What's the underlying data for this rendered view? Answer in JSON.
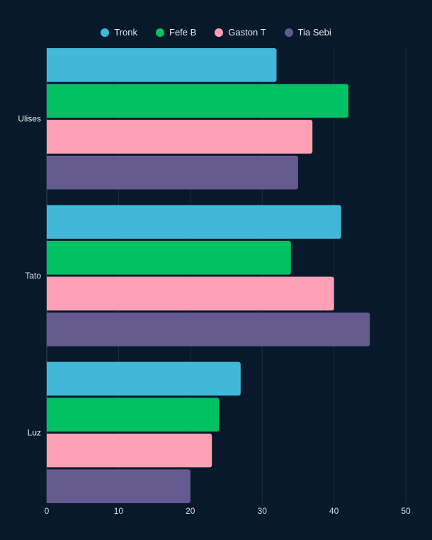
{
  "chart_data": {
    "type": "bar",
    "orientation": "horizontal",
    "title": "",
    "xlabel": "",
    "ylabel": "",
    "categories": [
      "Ulises",
      "Tato",
      "Luz"
    ],
    "series": [
      {
        "name": "Tronk",
        "color": "#42b8d9",
        "values": [
          32,
          41,
          27
        ]
      },
      {
        "name": "Fefe B",
        "color": "#00c264",
        "values": [
          42,
          34,
          24
        ]
      },
      {
        "name": "Gaston T",
        "color": "#ffa1b5",
        "values": [
          37,
          40,
          23
        ]
      },
      {
        "name": "Tia Sebi",
        "color": "#645a8f",
        "values": [
          35,
          45,
          20
        ]
      }
    ],
    "xlim": [
      0,
      50
    ],
    "xticks": [
      "0",
      "10",
      "20",
      "30",
      "40",
      "50"
    ],
    "grid": true,
    "legend_position": "top-center"
  }
}
